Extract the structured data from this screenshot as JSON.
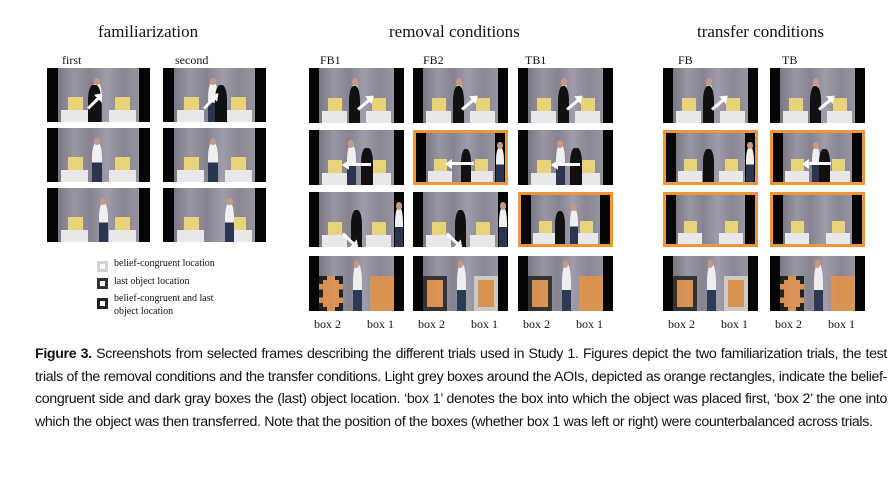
{
  "sections": {
    "familiarization": {
      "title": "familiarization",
      "columns": [
        "first",
        "second"
      ]
    },
    "removal": {
      "title": "removal conditions",
      "columns": [
        "FB1",
        "FB2",
        "TB1"
      ]
    },
    "transfer": {
      "title": "transfer conditions",
      "columns": [
        "FB",
        "TB"
      ]
    }
  },
  "box_labels": {
    "left": "box 2",
    "right": "box 1"
  },
  "legend": [
    {
      "style": "light",
      "label": "belief-congruent location"
    },
    {
      "style": "dark",
      "label": "last object location"
    },
    {
      "style": "both",
      "label": "belief-congruent and last object location"
    }
  ],
  "colors": {
    "aoi": "#f0963a",
    "highlight": "#f0963a",
    "light_box": "#c8ccc4",
    "dark_box": "#333333"
  },
  "removal_aoi": [
    [
      "both",
      "none"
    ],
    [
      "dark",
      "light"
    ],
    [
      "dark",
      "none"
    ]
  ],
  "transfer_aoi": [
    [
      "dark",
      "light"
    ],
    [
      "both",
      "none"
    ]
  ],
  "highlighted_frames": {
    "removal": [
      [
        1,
        1
      ],
      [
        2,
        2
      ]
    ],
    "transfer": [
      [
        1,
        0
      ],
      [
        1,
        1
      ],
      [
        2,
        0
      ],
      [
        2,
        1
      ]
    ]
  },
  "caption": {
    "label": "Figure 3.",
    "text": " Screenshots from selected frames describing the different trials used in Study 1. Figures depict the two familiarization trials, the test trials of the removal conditions and the transfer conditions. Light grey boxes around the AOIs, depicted as orange rectangles, indicate the belief-congruent side and dark gray boxes the (last) object location. ‘box 1’ denotes the box into which the object was placed first, ‘box 2’ the one into which the object was then transferred. Note that the position of the boxes (whether box 1 was left or right) were counterbalanced across trials."
  }
}
